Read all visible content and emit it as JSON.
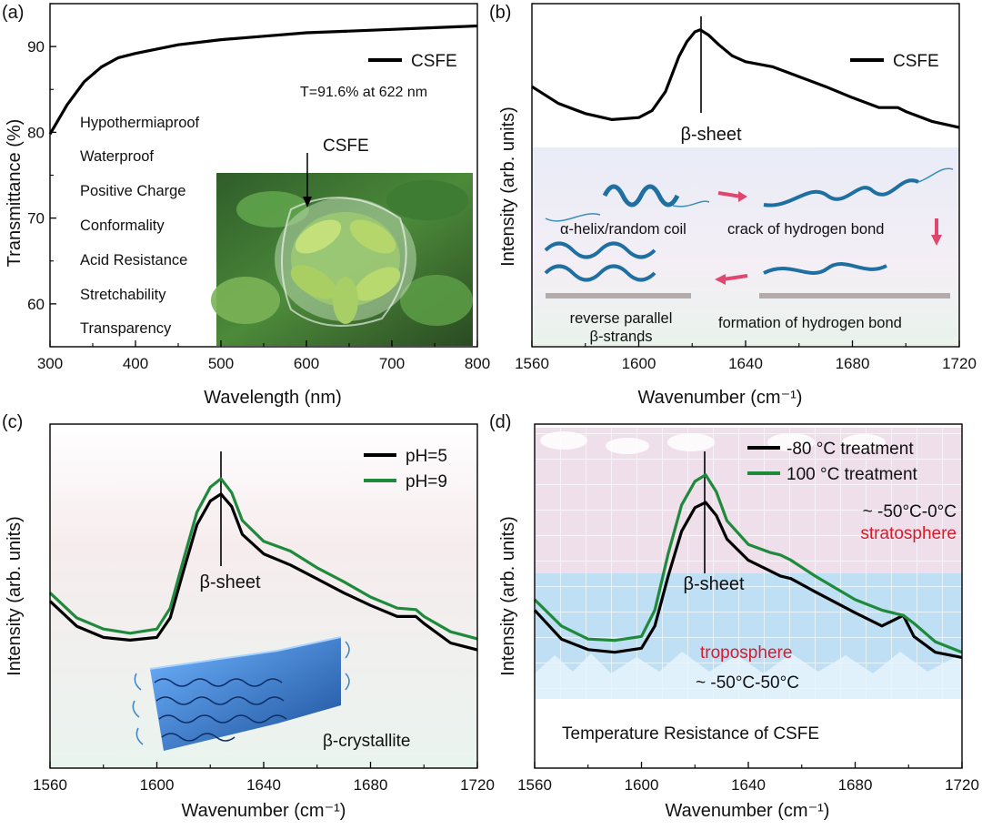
{
  "chart_data": [
    {
      "panel": "(a)",
      "type": "line",
      "xlabel": "Wavelength (nm)",
      "ylabel": "Transmittance (%)",
      "xlim": [
        300,
        800
      ],
      "ylim": [
        55,
        95
      ],
      "xticks": [
        300,
        400,
        500,
        600,
        700,
        800
      ],
      "yticks": [
        60,
        70,
        80,
        90
      ],
      "series": [
        {
          "name": "CSFE",
          "color": "#000000",
          "x": [
            300,
            320,
            340,
            360,
            380,
            400,
            450,
            500,
            550,
            600,
            650,
            700,
            750,
            800
          ],
          "y": [
            79.8,
            83.2,
            85.9,
            87.6,
            88.7,
            89.2,
            90.2,
            90.8,
            91.2,
            91.6,
            91.8,
            92.0,
            92.2,
            92.4
          ]
        }
      ],
      "annotations": {
        "note": "T=91.6% at 622 nm",
        "photo_label": "CSFE",
        "properties": [
          "Hypothermiaproof",
          "Waterproof",
          "Positive Charge",
          "Conformality",
          "Acid Resistance",
          "Stretchability",
          "Transparency"
        ]
      },
      "legend": "top-right",
      "grid": false
    },
    {
      "panel": "(b)",
      "type": "line",
      "xlabel": "Wavenumber (cm⁻¹)",
      "ylabel": "Intensity (arb. units)",
      "xlim": [
        1560,
        1720
      ],
      "xticks": [
        1560,
        1600,
        1640,
        1680,
        1720
      ],
      "series": [
        {
          "name": "CSFE",
          "color": "#000000",
          "x": [
            1560,
            1570,
            1580,
            1590,
            1600,
            1605,
            1610,
            1615,
            1618,
            1621,
            1623,
            1626,
            1630,
            1635,
            1640,
            1650,
            1660,
            1670,
            1680,
            1690,
            1697,
            1700,
            1710,
            1720
          ],
          "y": [
            0.55,
            0.38,
            0.28,
            0.22,
            0.24,
            0.31,
            0.5,
            0.85,
            1.0,
            1.1,
            1.12,
            1.07,
            0.97,
            0.86,
            0.8,
            0.75,
            0.65,
            0.55,
            0.44,
            0.34,
            0.34,
            0.3,
            0.2,
            0.14
          ]
        }
      ],
      "annotations": {
        "peak_label": "β-sheet",
        "scheme_labels": [
          "α-helix/random coil",
          "crack of hydrogen bond",
          "formation of hydrogen bond",
          "reverse parallel",
          "β-strands"
        ]
      },
      "legend": "top-right",
      "grid": false
    },
    {
      "panel": "(c)",
      "type": "line",
      "xlabel": "Wavenumber (cm⁻¹)",
      "ylabel": "Intensity (arb. units)",
      "xlim": [
        1560,
        1720
      ],
      "xticks": [
        1560,
        1600,
        1640,
        1680,
        1720
      ],
      "series": [
        {
          "name": "pH=5",
          "color": "#000000",
          "x": [
            1560,
            1570,
            1580,
            1590,
            1600,
            1605,
            1610,
            1615,
            1620,
            1624,
            1628,
            1632,
            1640,
            1650,
            1660,
            1670,
            1680,
            1690,
            1697,
            1700,
            1710,
            1720
          ],
          "y": [
            0.4,
            0.22,
            0.14,
            0.12,
            0.14,
            0.28,
            0.62,
            0.95,
            1.12,
            1.17,
            1.08,
            0.88,
            0.74,
            0.66,
            0.56,
            0.46,
            0.37,
            0.29,
            0.29,
            0.24,
            0.1,
            0.05
          ]
        },
        {
          "name": "pH=9",
          "color": "#1f8a3c",
          "x": [
            1560,
            1570,
            1580,
            1590,
            1600,
            1605,
            1610,
            1615,
            1620,
            1624,
            1628,
            1632,
            1640,
            1650,
            1660,
            1670,
            1680,
            1690,
            1697,
            1700,
            1710,
            1720
          ],
          "y": [
            0.46,
            0.28,
            0.2,
            0.17,
            0.2,
            0.35,
            0.7,
            1.04,
            1.22,
            1.28,
            1.18,
            0.98,
            0.83,
            0.76,
            0.64,
            0.54,
            0.43,
            0.35,
            0.34,
            0.29,
            0.18,
            0.13
          ]
        }
      ],
      "annotations": {
        "peak_label": "β-sheet",
        "image_label": "β-crystallite"
      },
      "legend": "top-right",
      "grid": false
    },
    {
      "panel": "(d)",
      "type": "line",
      "xlabel": "Wavenumber (cm⁻¹)",
      "ylabel": "Intensity (arb. units)",
      "xlim": [
        1560,
        1720
      ],
      "xticks": [
        1560,
        1600,
        1640,
        1680,
        1720
      ],
      "series": [
        {
          "name": "-80 °C treatment",
          "color": "#000000",
          "x": [
            1560,
            1570,
            1580,
            1590,
            1600,
            1605,
            1610,
            1615,
            1620,
            1624,
            1628,
            1632,
            1640,
            1648,
            1652,
            1656,
            1665,
            1680,
            1690,
            1695,
            1698,
            1702,
            1710,
            1720
          ],
          "y": [
            0.42,
            0.2,
            0.12,
            0.1,
            0.13,
            0.3,
            0.68,
            1.02,
            1.2,
            1.24,
            1.14,
            0.96,
            0.8,
            0.72,
            0.68,
            0.66,
            0.56,
            0.4,
            0.3,
            0.35,
            0.38,
            0.22,
            0.1,
            0.06
          ]
        },
        {
          "name": "100 °C treatment",
          "color": "#1f8a3c",
          "x": [
            1560,
            1570,
            1580,
            1590,
            1600,
            1605,
            1610,
            1615,
            1620,
            1624,
            1628,
            1632,
            1640,
            1648,
            1652,
            1656,
            1665,
            1680,
            1690,
            1698,
            1702,
            1710,
            1720
          ],
          "y": [
            0.5,
            0.3,
            0.2,
            0.19,
            0.22,
            0.42,
            0.85,
            1.22,
            1.4,
            1.45,
            1.32,
            1.1,
            0.92,
            0.86,
            0.84,
            0.8,
            0.68,
            0.5,
            0.42,
            0.38,
            0.32,
            0.18,
            0.1
          ]
        }
      ],
      "annotations": {
        "peak_label": "β-sheet",
        "strat_range": "~ -50°C-0°C",
        "strat_label": "stratosphere",
        "trop_label": "troposphere",
        "trop_range": "~ -50°C-50°C",
        "caption": "Temperature Resistance of CSFE"
      },
      "legend": "top-right",
      "grid": false
    }
  ],
  "colors": {
    "axis": "#000000",
    "green": "#1f8a3c",
    "red_label": "#d81b2c",
    "bg_b": "#eef0f8",
    "bg_c": "#f2eef0",
    "sky_pink": "#efe0ec",
    "sky_blue": "#cfe8f6"
  },
  "panel_labels": [
    "(a)",
    "(b)",
    "(c)",
    "(d)"
  ],
  "sup": "-1"
}
